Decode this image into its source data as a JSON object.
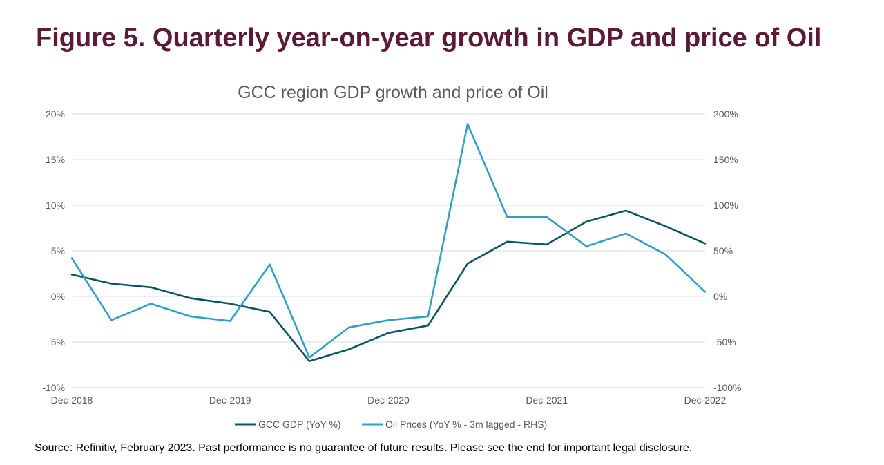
{
  "figure_title": "Figure 5. Quarterly year-on-year growth in GDP and price of Oil",
  "source_note": "Source: Refinitiv, February 2023. Past performance is no guarantee of future results. Please see the end for important legal disclosure.",
  "colors": {
    "title": "#5b1a35",
    "gdp_series": "#0b5560",
    "oil_series": "#2f9fc6",
    "gridline": "#d9d9d9",
    "text": "#595959"
  },
  "chart_data": {
    "type": "line",
    "title": "GCC region GDP growth and price of Oil",
    "x": [
      "Dec-2018",
      "Mar-2019",
      "Jun-2019",
      "Sep-2019",
      "Dec-2019",
      "Mar-2020",
      "Jun-2020",
      "Sep-2020",
      "Dec-2020",
      "Mar-2021",
      "Jun-2021",
      "Sep-2021",
      "Dec-2021",
      "Mar-2022",
      "Jun-2022",
      "Sep-2022",
      "Dec-2022"
    ],
    "x_tick_labels": [
      "Dec-2018",
      "Dec-2019",
      "Dec-2020",
      "Dec-2021",
      "Dec-2022"
    ],
    "y_left": {
      "range": [
        -10,
        20
      ],
      "ticks": [
        20,
        15,
        10,
        5,
        0,
        -5,
        -10
      ],
      "tick_labels": [
        "20%",
        "15%",
        "10%",
        "5%",
        "0%",
        "-5%",
        "-10%"
      ]
    },
    "y_right": {
      "range": [
        -100,
        200
      ],
      "ticks": [
        200,
        150,
        100,
        50,
        0,
        -50,
        -100
      ],
      "tick_labels": [
        "200%",
        "150%",
        "100%",
        "50%",
        "0%",
        "-50%",
        "-100%"
      ]
    },
    "grid": true,
    "legend_position": "bottom",
    "series": [
      {
        "name": "GCC GDP (YoY %)",
        "axis": "left",
        "values": [
          2.4,
          1.4,
          1.0,
          -0.2,
          -0.8,
          -1.7,
          -7.1,
          -5.8,
          -4.0,
          -3.2,
          3.6,
          6.0,
          5.7,
          8.2,
          9.4,
          7.7,
          5.8
        ]
      },
      {
        "name": "Oil Prices (YoY % - 3m lagged - RHS)",
        "axis": "right",
        "values": [
          42,
          -26,
          -8,
          -22,
          -27,
          35,
          -67,
          -34,
          -26,
          -22,
          189,
          87,
          87,
          55,
          69,
          46,
          5
        ]
      }
    ]
  }
}
